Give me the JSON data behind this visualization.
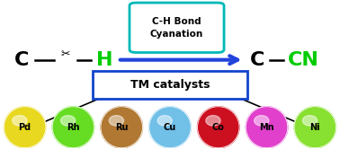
{
  "bg_color": "#ffffff",
  "arrow_color": "#2244dd",
  "box_ch_text": "C-H Bond\nCyanation",
  "box_ch_border": "#00b8b8",
  "box_tm_text": "TM catalysts",
  "box_tm_border": "#1144cc",
  "left_C": "C",
  "left_H": "H",
  "right_C": "C",
  "right_CN": "CN",
  "catalysts": [
    "Pd",
    "Rh",
    "Ru",
    "Cu",
    "Co",
    "Mn",
    "Ni"
  ],
  "catalyst_colors": [
    "#e8d820",
    "#66dd22",
    "#b07832",
    "#70c0e8",
    "#cc1020",
    "#e040cc",
    "#88e030"
  ],
  "catalyst_text_color": "#000000",
  "fig_w": 3.78,
  "fig_h": 1.66,
  "dpi": 100
}
